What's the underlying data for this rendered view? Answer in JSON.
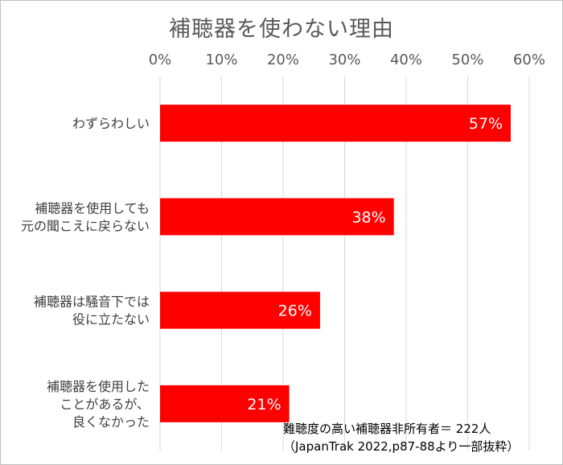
{
  "chart_data": {
    "type": "bar",
    "orientation": "horizontal",
    "title": "補聴器を使わない理由",
    "categories": [
      [
        "わずらわしい"
      ],
      [
        "補聴器を使用しても",
        "元の聞こえに戻らない"
      ],
      [
        "補聴器は騒音下では",
        "役に立たない"
      ],
      [
        "補聴器を使用した",
        "ことがあるが、",
        "良くなかった"
      ]
    ],
    "values": [
      57,
      38,
      26,
      21
    ],
    "data_labels": [
      "57%",
      "38%",
      "26%",
      "21%"
    ],
    "xlim": [
      0,
      60
    ],
    "x_ticks": [
      "0%",
      "10%",
      "20%",
      "30%",
      "40%",
      "50%",
      "60%"
    ],
    "xaxis_position": "top",
    "grid": true,
    "bar_color": "#ff0000",
    "legend": "none"
  },
  "note": {
    "line1": "難聴度の高い補聴器非所有者＝ 222人",
    "line2": "（JapanTrak 2022,p87-88より一部抜粋）"
  }
}
